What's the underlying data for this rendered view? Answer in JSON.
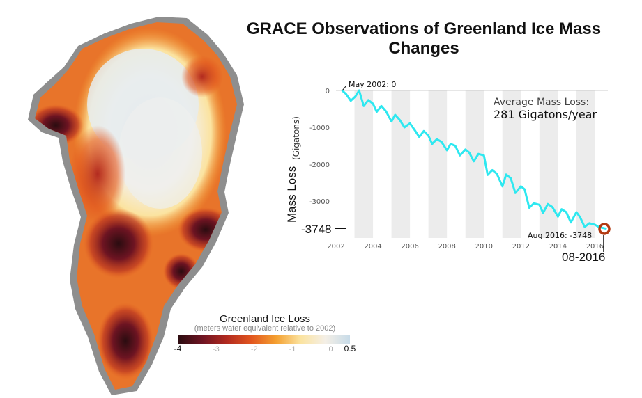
{
  "title": "GRACE Observations of Greenland Ice Mass Changes",
  "map_legend": {
    "title": "Greenland Ice Loss",
    "subtitle": "(meters water equivalent relative to 2002)",
    "ticks": [
      "-4",
      "-3",
      "-2",
      "-1",
      "0",
      "0.5"
    ],
    "colors": [
      "#2a0c10",
      "#6e1422",
      "#b22a1f",
      "#e2561f",
      "#f4a030",
      "#fbe3a0",
      "#f4efe6",
      "#c7dbe8"
    ]
  },
  "chart_data": {
    "type": "line",
    "ylabel": "Mass Loss",
    "ylabel_unit": "(Gigatons)",
    "xlim": [
      2002,
      2016.7
    ],
    "ylim": [
      -4000,
      0
    ],
    "x_ticks": [
      "2002",
      "2004",
      "2006",
      "2008",
      "2010",
      "2012",
      "2014",
      "2016"
    ],
    "y_ticks": [
      "0",
      "-1000",
      "-2000",
      "-3000"
    ],
    "line_color": "#2ee8f0",
    "x": [
      2002.33,
      2002.55,
      2002.8,
      2003.05,
      2003.25,
      2003.5,
      2003.75,
      2004.0,
      2004.2,
      2004.45,
      2004.7,
      2005.0,
      2005.2,
      2005.45,
      2005.7,
      2006.0,
      2006.25,
      2006.5,
      2006.75,
      2007.0,
      2007.2,
      2007.45,
      2007.7,
      2008.0,
      2008.2,
      2008.45,
      2008.7,
      2009.0,
      2009.2,
      2009.45,
      2009.7,
      2010.0,
      2010.2,
      2010.45,
      2010.7,
      2011.0,
      2011.2,
      2011.45,
      2011.7,
      2012.0,
      2012.2,
      2012.45,
      2012.7,
      2013.0,
      2013.2,
      2013.45,
      2013.7,
      2014.0,
      2014.2,
      2014.45,
      2014.7,
      2015.0,
      2015.2,
      2015.45,
      2015.7,
      2016.0,
      2016.2,
      2016.6
    ],
    "values": [
      0,
      -100,
      -280,
      -160,
      0,
      -420,
      -260,
      -360,
      -580,
      -420,
      -560,
      -840,
      -660,
      -800,
      -1000,
      -890,
      -1070,
      -1260,
      -1100,
      -1230,
      -1450,
      -1320,
      -1390,
      -1620,
      -1450,
      -1500,
      -1760,
      -1600,
      -1680,
      -1920,
      -1720,
      -1760,
      -2290,
      -2160,
      -2260,
      -2600,
      -2280,
      -2380,
      -2780,
      -2600,
      -2680,
      -3180,
      -3060,
      -3100,
      -3320,
      -3080,
      -3160,
      -3420,
      -3220,
      -3300,
      -3580,
      -3300,
      -3440,
      -3700,
      -3600,
      -3640,
      -3700,
      -3748
    ],
    "start_label": "May 2002: 0",
    "end_label": "Aug 2016: -3748",
    "end_value_label": "-3748",
    "end_date_label": "08-2016",
    "avg_label": "Average Mass Loss:",
    "avg_value": "281 Gigatons/year"
  }
}
